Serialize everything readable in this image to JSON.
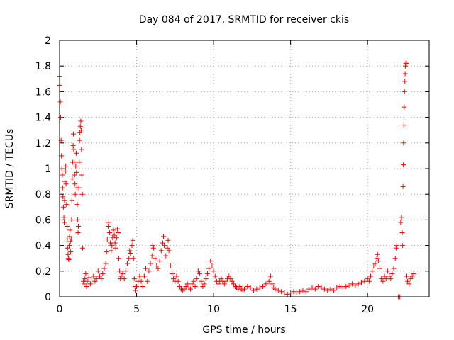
{
  "chart_data": {
    "type": "scatter",
    "title": "Day 084 of 2017, SRMTID for receiver ckis",
    "xlabel": "GPS time / hours",
    "ylabel": "SRMTID / TECUs",
    "xlim": [
      0,
      24
    ],
    "ylim": [
      0,
      2
    ],
    "xticks": [
      0,
      5,
      10,
      15,
      20
    ],
    "xtick_labels": [
      "0",
      "5",
      "10",
      "15",
      "20"
    ],
    "yticks": [
      0,
      0.2,
      0.4,
      0.6,
      0.8,
      1,
      1.2,
      1.4,
      1.6,
      1.8,
      2
    ],
    "ytick_labels": [
      "0",
      "0.2",
      "0.4",
      "0.6",
      "0.8",
      "1",
      "1.2",
      "1.4",
      "1.6",
      "1.8",
      "2"
    ],
    "grid": true,
    "marker": "+",
    "series": [
      {
        "name": "SRMTID",
        "color": "#ff0000",
        "points": [
          [
            0.0,
            1.72
          ],
          [
            0.02,
            1.65
          ],
          [
            0.05,
            1.52
          ],
          [
            0.07,
            1.4
          ],
          [
            0.1,
            1.22
          ],
          [
            0.12,
            1.1
          ],
          [
            0.15,
            1.0
          ],
          [
            0.18,
            0.95
          ],
          [
            0.2,
            0.85
          ],
          [
            0.22,
            0.78
          ],
          [
            0.25,
            0.7
          ],
          [
            0.28,
            0.62
          ],
          [
            0.3,
            0.58
          ],
          [
            0.32,
            0.75
          ],
          [
            0.35,
            0.9
          ],
          [
            0.38,
            0.98
          ],
          [
            0.4,
            1.02
          ],
          [
            0.42,
            0.88
          ],
          [
            0.45,
            0.72
          ],
          [
            0.48,
            0.55
          ],
          [
            0.5,
            0.45
          ],
          [
            0.52,
            0.38
          ],
          [
            0.55,
            0.33
          ],
          [
            0.58,
            0.3
          ],
          [
            0.6,
            0.29
          ],
          [
            0.62,
            0.4
          ],
          [
            0.65,
            0.47
          ],
          [
            0.68,
            0.52
          ],
          [
            0.7,
            0.43
          ],
          [
            0.72,
            0.35
          ],
          [
            0.75,
            0.45
          ],
          [
            0.78,
            0.6
          ],
          [
            0.8,
            0.75
          ],
          [
            0.82,
            0.92
          ],
          [
            0.85,
            1.05
          ],
          [
            0.88,
            1.18
          ],
          [
            0.9,
            1.27
          ],
          [
            0.92,
            1.15
          ],
          [
            0.95,
            1.05
          ],
          [
            0.98,
            0.95
          ],
          [
            1.0,
            0.88
          ],
          [
            1.02,
            0.8
          ],
          [
            1.05,
            1.02
          ],
          [
            1.08,
            1.12
          ],
          [
            1.1,
            0.97
          ],
          [
            1.12,
            0.85
          ],
          [
            1.15,
            0.72
          ],
          [
            1.18,
            0.6
          ],
          [
            1.2,
            0.5
          ],
          [
            1.22,
            0.55
          ],
          [
            1.25,
            0.85
          ],
          [
            1.28,
            1.05
          ],
          [
            1.3,
            1.22
          ],
          [
            1.32,
            1.28
          ],
          [
            1.35,
            1.33
          ],
          [
            1.38,
            1.37
          ],
          [
            1.4,
            1.3
          ],
          [
            1.42,
            1.15
          ],
          [
            1.45,
            0.95
          ],
          [
            1.48,
            0.8
          ],
          [
            1.5,
            0.38
          ],
          [
            1.55,
            0.12
          ],
          [
            1.6,
            0.1
          ],
          [
            1.65,
            0.14
          ],
          [
            1.7,
            0.18
          ],
          [
            1.75,
            0.08
          ],
          [
            1.8,
            0.12
          ],
          [
            1.9,
            0.15
          ],
          [
            2.0,
            0.1
          ],
          [
            2.1,
            0.13
          ],
          [
            2.2,
            0.16
          ],
          [
            2.3,
            0.12
          ],
          [
            2.4,
            0.14
          ],
          [
            2.5,
            0.2
          ],
          [
            2.6,
            0.16
          ],
          [
            2.7,
            0.14
          ],
          [
            2.8,
            0.18
          ],
          [
            2.9,
            0.22
          ],
          [
            3.0,
            0.26
          ],
          [
            3.05,
            0.35
          ],
          [
            3.1,
            0.45
          ],
          [
            3.15,
            0.55
          ],
          [
            3.2,
            0.58
          ],
          [
            3.25,
            0.5
          ],
          [
            3.3,
            0.42
          ],
          [
            3.35,
            0.36
          ],
          [
            3.4,
            0.4
          ],
          [
            3.45,
            0.46
          ],
          [
            3.5,
            0.52
          ],
          [
            3.55,
            0.48
          ],
          [
            3.6,
            0.42
          ],
          [
            3.65,
            0.38
          ],
          [
            3.7,
            0.46
          ],
          [
            3.75,
            0.53
          ],
          [
            3.8,
            0.5
          ],
          [
            3.85,
            0.3
          ],
          [
            3.9,
            0.2
          ],
          [
            3.95,
            0.14
          ],
          [
            4.0,
            0.16
          ],
          [
            4.1,
            0.18
          ],
          [
            4.2,
            0.14
          ],
          [
            4.3,
            0.2
          ],
          [
            4.4,
            0.26
          ],
          [
            4.5,
            0.3
          ],
          [
            4.55,
            0.36
          ],
          [
            4.6,
            0.34
          ],
          [
            4.7,
            0.4
          ],
          [
            4.75,
            0.44
          ],
          [
            4.8,
            0.3
          ],
          [
            4.85,
            0.14
          ],
          [
            4.9,
            0.08
          ],
          [
            4.95,
            0.05
          ],
          [
            5.0,
            0.08
          ],
          [
            5.1,
            0.12
          ],
          [
            5.2,
            0.16
          ],
          [
            5.3,
            0.12
          ],
          [
            5.4,
            0.08
          ],
          [
            5.5,
            0.16
          ],
          [
            5.6,
            0.22
          ],
          [
            5.7,
            0.12
          ],
          [
            5.8,
            0.2
          ],
          [
            5.9,
            0.26
          ],
          [
            6.0,
            0.32
          ],
          [
            6.05,
            0.4
          ],
          [
            6.1,
            0.38
          ],
          [
            6.2,
            0.3
          ],
          [
            6.3,
            0.24
          ],
          [
            6.4,
            0.22
          ],
          [
            6.5,
            0.28
          ],
          [
            6.6,
            0.36
          ],
          [
            6.7,
            0.42
          ],
          [
            6.75,
            0.47
          ],
          [
            6.8,
            0.4
          ],
          [
            6.9,
            0.32
          ],
          [
            7.0,
            0.38
          ],
          [
            7.05,
            0.44
          ],
          [
            7.1,
            0.36
          ],
          [
            7.2,
            0.24
          ],
          [
            7.3,
            0.18
          ],
          [
            7.4,
            0.14
          ],
          [
            7.5,
            0.12
          ],
          [
            7.6,
            0.16
          ],
          [
            7.7,
            0.12
          ],
          [
            7.8,
            0.08
          ],
          [
            7.9,
            0.06
          ],
          [
            8.0,
            0.05
          ],
          [
            8.1,
            0.06
          ],
          [
            8.2,
            0.08
          ],
          [
            8.3,
            0.1
          ],
          [
            8.4,
            0.07
          ],
          [
            8.5,
            0.06
          ],
          [
            8.6,
            0.1
          ],
          [
            8.7,
            0.12
          ],
          [
            8.8,
            0.08
          ],
          [
            8.9,
            0.14
          ],
          [
            9.0,
            0.2
          ],
          [
            9.1,
            0.18
          ],
          [
            9.2,
            0.12
          ],
          [
            9.3,
            0.08
          ],
          [
            9.4,
            0.1
          ],
          [
            9.5,
            0.14
          ],
          [
            9.6,
            0.18
          ],
          [
            9.7,
            0.22
          ],
          [
            9.8,
            0.28
          ],
          [
            9.9,
            0.24
          ],
          [
            10.0,
            0.2
          ],
          [
            10.1,
            0.16
          ],
          [
            10.2,
            0.12
          ],
          [
            10.3,
            0.1
          ],
          [
            10.4,
            0.12
          ],
          [
            10.5,
            0.14
          ],
          [
            10.6,
            0.12
          ],
          [
            10.7,
            0.1
          ],
          [
            10.8,
            0.12
          ],
          [
            10.9,
            0.14
          ],
          [
            11.0,
            0.16
          ],
          [
            11.1,
            0.14
          ],
          [
            11.2,
            0.12
          ],
          [
            11.3,
            0.1
          ],
          [
            11.4,
            0.08
          ],
          [
            11.5,
            0.07
          ],
          [
            11.6,
            0.06
          ],
          [
            11.7,
            0.08
          ],
          [
            11.8,
            0.06
          ],
          [
            11.9,
            0.05
          ],
          [
            12.0,
            0.06
          ],
          [
            12.2,
            0.08
          ],
          [
            12.4,
            0.07
          ],
          [
            12.6,
            0.05
          ],
          [
            12.8,
            0.06
          ],
          [
            13.0,
            0.07
          ],
          [
            13.2,
            0.08
          ],
          [
            13.4,
            0.1
          ],
          [
            13.6,
            0.12
          ],
          [
            13.7,
            0.16
          ],
          [
            13.8,
            0.1
          ],
          [
            13.9,
            0.07
          ],
          [
            14.0,
            0.06
          ],
          [
            14.2,
            0.05
          ],
          [
            14.4,
            0.04
          ],
          [
            14.6,
            0.03
          ],
          [
            14.8,
            0.02
          ],
          [
            15.0,
            0.03
          ],
          [
            15.2,
            0.04
          ],
          [
            15.4,
            0.03
          ],
          [
            15.6,
            0.04
          ],
          [
            15.8,
            0.05
          ],
          [
            16.0,
            0.04
          ],
          [
            16.2,
            0.06
          ],
          [
            16.4,
            0.07
          ],
          [
            16.6,
            0.06
          ],
          [
            16.8,
            0.08
          ],
          [
            17.0,
            0.07
          ],
          [
            17.2,
            0.06
          ],
          [
            17.4,
            0.05
          ],
          [
            17.6,
            0.06
          ],
          [
            17.8,
            0.05
          ],
          [
            18.0,
            0.07
          ],
          [
            18.2,
            0.08
          ],
          [
            18.4,
            0.07
          ],
          [
            18.6,
            0.08
          ],
          [
            18.8,
            0.09
          ],
          [
            19.0,
            0.1
          ],
          [
            19.2,
            0.09
          ],
          [
            19.4,
            0.1
          ],
          [
            19.6,
            0.11
          ],
          [
            19.8,
            0.12
          ],
          [
            20.0,
            0.14
          ],
          [
            20.1,
            0.12
          ],
          [
            20.2,
            0.16
          ],
          [
            20.3,
            0.2
          ],
          [
            20.4,
            0.24
          ],
          [
            20.5,
            0.26
          ],
          [
            20.6,
            0.3
          ],
          [
            20.65,
            0.33
          ],
          [
            20.7,
            0.28
          ],
          [
            20.8,
            0.22
          ],
          [
            20.9,
            0.14
          ],
          [
            21.0,
            0.12
          ],
          [
            21.1,
            0.16
          ],
          [
            21.2,
            0.14
          ],
          [
            21.3,
            0.2
          ],
          [
            21.4,
            0.16
          ],
          [
            21.5,
            0.14
          ],
          [
            21.6,
            0.18
          ],
          [
            21.7,
            0.22
          ],
          [
            21.8,
            0.3
          ],
          [
            21.85,
            0.38
          ],
          [
            21.9,
            0.4
          ],
          [
            22.0,
            0.0
          ],
          [
            22.05,
            0.0
          ],
          [
            22.1,
            0.0
          ],
          [
            22.15,
            0.58
          ],
          [
            22.2,
            0.62
          ],
          [
            22.25,
            0.5
          ],
          [
            22.28,
            0.4
          ],
          [
            22.3,
            0.86
          ],
          [
            22.32,
            1.03
          ],
          [
            22.34,
            1.2
          ],
          [
            22.36,
            1.34
          ],
          [
            22.38,
            1.48
          ],
          [
            22.4,
            1.6
          ],
          [
            22.42,
            1.68
          ],
          [
            22.44,
            1.74
          ],
          [
            22.46,
            1.8
          ],
          [
            22.48,
            1.82
          ],
          [
            22.5,
            1.83
          ],
          [
            22.52,
            1.82
          ],
          [
            22.55,
            0.16
          ],
          [
            22.6,
            0.12
          ],
          [
            22.7,
            0.1
          ],
          [
            22.8,
            0.14
          ],
          [
            22.9,
            0.16
          ],
          [
            23.0,
            0.18
          ]
        ]
      }
    ]
  }
}
